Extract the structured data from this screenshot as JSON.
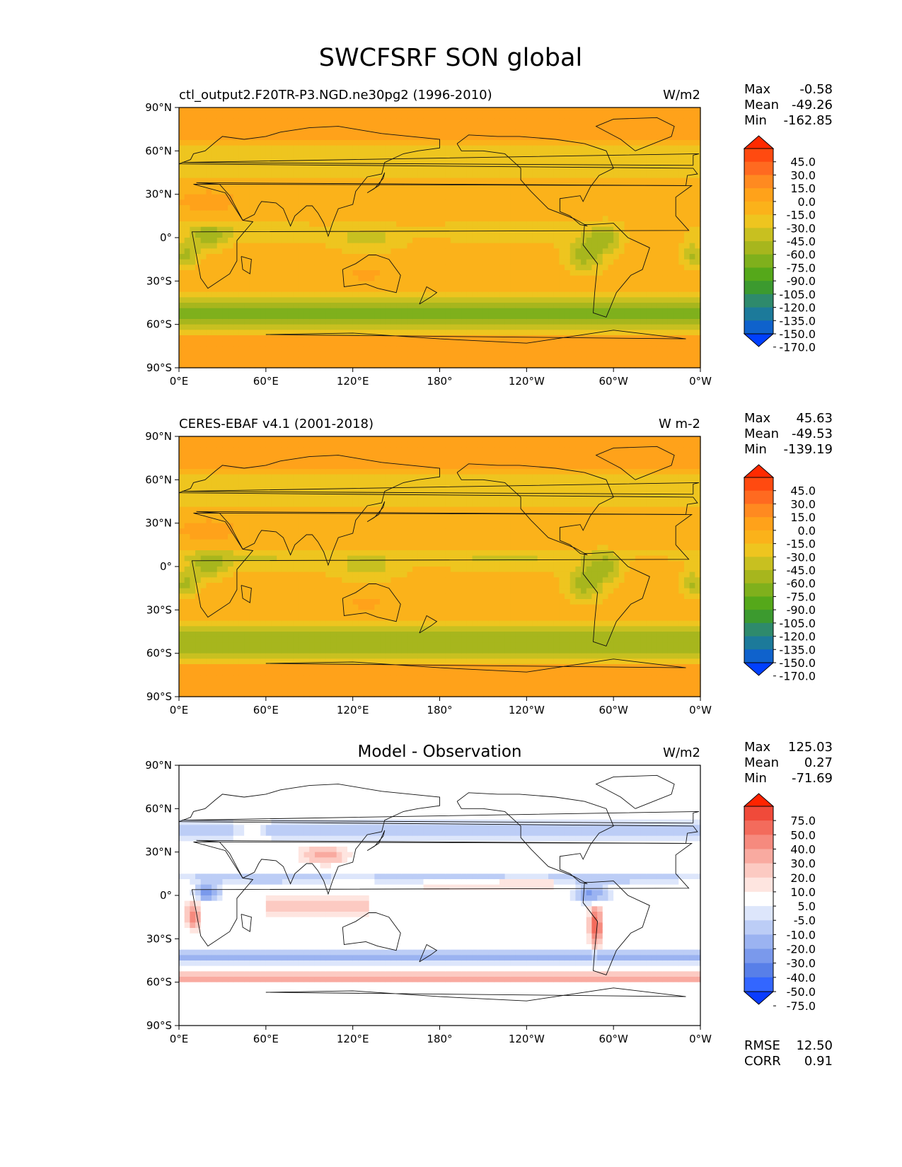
{
  "figure": {
    "title": "SWCFSRF SON global"
  },
  "x_ticks": [
    "0°E",
    "60°E",
    "120°E",
    "180°",
    "120°W",
    "60°W",
    "0°W"
  ],
  "y_ticks": [
    "90°N",
    "60°N",
    "30°N",
    "0°",
    "30°S",
    "60°S",
    "90°S"
  ],
  "stat_labels": {
    "max": "Max",
    "mean": "Mean",
    "min": "Min",
    "rmse": "RMSE",
    "corr": "CORR"
  },
  "panels": [
    {
      "title_left": "ctl_output2.F20TR-P3.NGD.ne30pg2 (1996-2010)",
      "title_center": "",
      "units": "W/m2",
      "stats": {
        "max": "-0.58",
        "mean": "-49.26",
        "min": "-162.85"
      },
      "colorbar": {
        "labels": [
          "45.0",
          "30.0",
          "15.0",
          "0.0",
          "-15.0",
          "-30.0",
          "-45.0",
          "-60.0",
          "-75.0",
          "-90.0",
          "-105.0",
          "-120.0",
          "-135.0",
          "-150.0",
          "-170.0"
        ],
        "colors": [
          "#ff2a00",
          "#ff4a10",
          "#ff6a20",
          "#ff8a20",
          "#ffa21a",
          "#fbb21a",
          "#eec51f",
          "#c8c020",
          "#a7b61d",
          "#7fb01c",
          "#55a81a",
          "#3c9a2f",
          "#2e8a6c",
          "#1c7a9a",
          "#0f62cc",
          "#0040ff"
        ]
      },
      "field": "model"
    },
    {
      "title_left": "CERES-EBAF v4.1 (2001-2018)",
      "title_center": "",
      "units": "W m-2",
      "stats": {
        "max": "45.63",
        "mean": "-49.53",
        "min": "-139.19"
      },
      "colorbar": {
        "labels": [
          "45.0",
          "30.0",
          "15.0",
          "0.0",
          "-15.0",
          "-30.0",
          "-45.0",
          "-60.0",
          "-75.0",
          "-90.0",
          "-105.0",
          "-120.0",
          "-135.0",
          "-150.0",
          "-170.0"
        ],
        "colors": [
          "#ff2a00",
          "#ff4a10",
          "#ff6a20",
          "#ff8a20",
          "#ffa21a",
          "#fbb21a",
          "#eec51f",
          "#c8c020",
          "#a7b61d",
          "#7fb01c",
          "#55a81a",
          "#3c9a2f",
          "#2e8a6c",
          "#1c7a9a",
          "#0f62cc",
          "#0040ff"
        ]
      },
      "field": "obs"
    },
    {
      "title_left": "",
      "title_center": "Model - Observation",
      "units": "W/m2",
      "stats": {
        "max": "125.03",
        "mean": "0.27",
        "min": "-71.69",
        "rmse": "12.50",
        "corr": "0.91"
      },
      "colorbar": {
        "labels": [
          "75.0",
          "50.0",
          "40.0",
          "30.0",
          "20.0",
          "10.0",
          "5.0",
          "-5.0",
          "-10.0",
          "-20.0",
          "-30.0",
          "-40.0",
          "-50.0",
          "-75.0"
        ],
        "colors": [
          "#ff2400",
          "#f04a3a",
          "#f36b5c",
          "#f68a7e",
          "#f9aaa0",
          "#fccac2",
          "#fee5e0",
          "#ffffff",
          "#dde6fb",
          "#bccdf6",
          "#9bb3f1",
          "#7a99ec",
          "#587fe8",
          "#3366ff",
          "#0a3cff"
        ]
      },
      "field": "diff"
    }
  ]
}
